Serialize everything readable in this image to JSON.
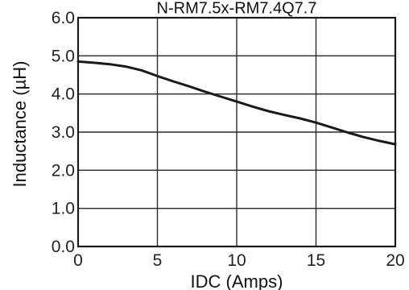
{
  "chart_data": {
    "type": "line",
    "title": "N-RM7.5x-RM7.4Q7.7",
    "xlabel": "IDC (Amps)",
    "ylabel": "Inductance (µH)",
    "xlim": [
      0,
      20
    ],
    "ylim": [
      0,
      6
    ],
    "x_ticks": [
      "0",
      "5",
      "10",
      "15",
      "20"
    ],
    "y_ticks": [
      "0.0",
      "1.0",
      "2.0",
      "3.0",
      "4.0",
      "5.0",
      "6.0"
    ],
    "grid": true,
    "series": [
      {
        "x": [
          0,
          1,
          2,
          3,
          4,
          5,
          6,
          7,
          8,
          9,
          10,
          11,
          12,
          13,
          14,
          15,
          16,
          17,
          18,
          19,
          20
        ],
        "y": [
          4.85,
          4.82,
          4.78,
          4.72,
          4.62,
          4.47,
          4.33,
          4.2,
          4.06,
          3.93,
          3.8,
          3.67,
          3.55,
          3.45,
          3.36,
          3.25,
          3.12,
          2.99,
          2.87,
          2.77,
          2.68
        ]
      }
    ],
    "colors": {
      "line": "#1a1a1a",
      "grid": "#2a2a2a",
      "frame": "#1a1a1a"
    }
  }
}
